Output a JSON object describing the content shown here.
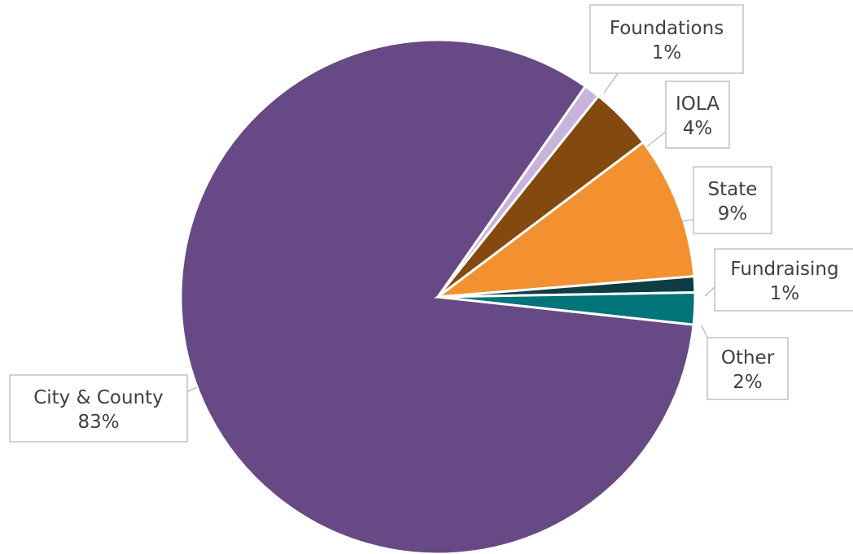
{
  "chart_data": {
    "type": "pie",
    "title": "",
    "slices": [
      {
        "label": "City & County",
        "value": 83,
        "value_label": "83%",
        "color": "#674a85"
      },
      {
        "label": "Foundations",
        "value": 1,
        "value_label": "1%",
        "color": "#c7b3db"
      },
      {
        "label": "IOLA",
        "value": 4,
        "value_label": "4%",
        "color": "#84490e"
      },
      {
        "label": "State",
        "value": 9,
        "value_label": "9%",
        "color": "#f39130"
      },
      {
        "label": "Fundraising",
        "value": 1,
        "value_label": "1%",
        "color": "#103d43"
      },
      {
        "label": "Other",
        "value": 2,
        "value_label": "2%",
        "color": "#007479"
      }
    ],
    "legend": "none",
    "data_labels": "callouts"
  }
}
